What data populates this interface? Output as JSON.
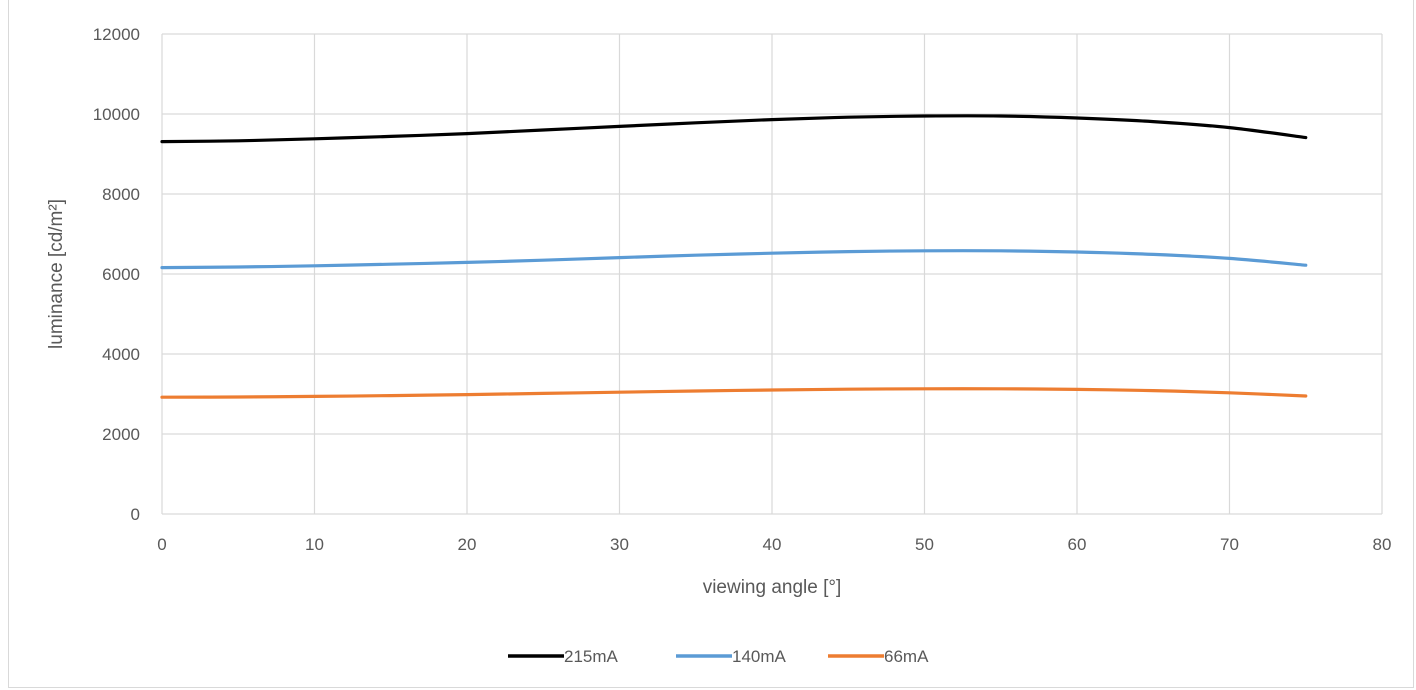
{
  "chart_data": {
    "type": "line",
    "title": "",
    "xlabel": "viewing angle [°]",
    "ylabel": "luminance [cd/m²]",
    "xlim": [
      0,
      80
    ],
    "ylim": [
      0,
      12000
    ],
    "x_ticks": [
      0,
      10,
      20,
      30,
      40,
      50,
      60,
      70,
      80
    ],
    "y_ticks": [
      0,
      2000,
      4000,
      6000,
      8000,
      10000,
      12000
    ],
    "x_tick_labels": [
      "0",
      "10",
      "20",
      "30",
      "40",
      "50",
      "60",
      "70",
      "80"
    ],
    "y_tick_labels": [
      "0",
      "2000",
      "4000",
      "6000",
      "8000",
      "10000",
      "12000"
    ],
    "grid": true,
    "legend_position": "bottom",
    "x": [
      0,
      5,
      10,
      15,
      20,
      25,
      30,
      35,
      40,
      45,
      50,
      55,
      60,
      65,
      70,
      75
    ],
    "series": [
      {
        "name": "215mA",
        "color": "#000000",
        "values": [
          9310,
          9330,
          9380,
          9440,
          9510,
          9600,
          9690,
          9780,
          9860,
          9920,
          9950,
          9950,
          9900,
          9810,
          9660,
          9410
        ]
      },
      {
        "name": "140mA",
        "color": "#5b9bd5",
        "values": [
          6160,
          6175,
          6205,
          6245,
          6290,
          6345,
          6410,
          6470,
          6520,
          6560,
          6580,
          6580,
          6550,
          6490,
          6390,
          6220
        ]
      },
      {
        "name": "66mA",
        "color": "#ed7d31",
        "values": [
          2920,
          2925,
          2940,
          2960,
          2985,
          3015,
          3045,
          3075,
          3100,
          3120,
          3130,
          3130,
          3115,
          3085,
          3030,
          2950
        ]
      }
    ]
  }
}
